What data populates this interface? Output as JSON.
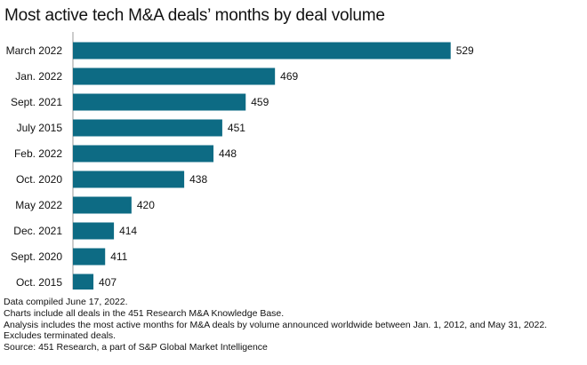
{
  "chart_data": {
    "type": "bar",
    "orientation": "horizontal",
    "title": "Most active tech M&A deals’ months by deal volume",
    "categories": [
      "March 2022",
      "Jan. 2022",
      "Sept. 2021",
      "July 2015",
      "Feb. 2022",
      "Oct. 2020",
      "May 2022",
      "Dec. 2021",
      "Sept. 2020",
      "Oct. 2015"
    ],
    "values": [
      529,
      469,
      459,
      451,
      448,
      438,
      420,
      414,
      411,
      407
    ],
    "xlim": [
      400,
      530
    ],
    "grid": false,
    "bar_color": "#0d6b84",
    "data_labels": true
  },
  "footnotes": [
    "Data compiled June 17, 2022.",
    "Charts include all deals in the 451 Research M&A Knowledge Base.",
    "Analysis includes the most active months for M&A deals by volume announced worldwide between Jan. 1, 2012, and May 31, 2022. Excludes terminated deals.",
    "Source: 451 Research, a part of S&P Global Market Intelligence"
  ]
}
